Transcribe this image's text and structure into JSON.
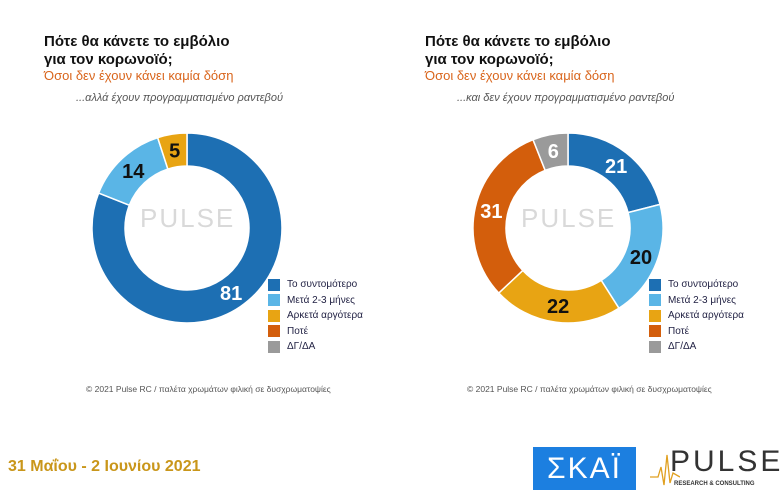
{
  "chart_data": [
    {
      "type": "pie",
      "title": "Πότε θα κάνετε το εμβόλιο για τον κορωνοϊό;",
      "subtitle": "Όσοι δεν έχουν κάνει καμία δόση",
      "condition": "...αλλά έχουν προγραμματισμένο ραντεβού",
      "categories": [
        "Το συντομότερο",
        "Μετά 2-3 μήνες",
        "Αρκετά αργότερα"
      ],
      "values": [
        81,
        14,
        5
      ],
      "colors": [
        "#1d6fb3",
        "#5ab5e6",
        "#e8a413"
      ]
    },
    {
      "type": "pie",
      "title": "Πότε θα κάνετε το εμβόλιο για τον κορωνοϊό;",
      "subtitle": "Όσοι δεν έχουν κάνει καμία δόση",
      "condition": "...και δεν έχουν προγραμματισμένο ραντεβού",
      "categories": [
        "Το συντομότερο",
        "Μετά 2-3 μήνες",
        "Αρκετά αργότερα",
        "Ποτέ",
        "ΔΓ/ΔΑ"
      ],
      "values": [
        21,
        20,
        22,
        31,
        6
      ],
      "colors": [
        "#1d6fb3",
        "#5ab5e6",
        "#e8a413",
        "#d35e0c",
        "#9a9a9a"
      ]
    }
  ],
  "title_line1": "Πότε θα κάνετε το εμβόλιο",
  "title_line2": "για τον κορωνοϊό;",
  "legend": [
    {
      "label": "Το συντομότερο",
      "color": "#1d6fb3"
    },
    {
      "label": "Μετά 2-3 μήνες",
      "color": "#5ab5e6"
    },
    {
      "label": "Αρκετά αργότερα",
      "color": "#e8a413"
    },
    {
      "label": "Ποτέ",
      "color": "#d35e0c"
    },
    {
      "label": "ΔΓ/ΔΑ",
      "color": "#9a9a9a"
    }
  ],
  "copyright": "© 2021 Pulse RC  /  παλέτα χρωμάτων φιλική σε δυσχρωματοψίες",
  "watermark": "PULSE",
  "date": "31 Μαΐου - 2 Ιουνίου 2021",
  "logos": {
    "skai": "ΣΚΑΪ",
    "pulse": "PULSE",
    "pulse_sub": "RESEARCH & CONSULTING"
  }
}
